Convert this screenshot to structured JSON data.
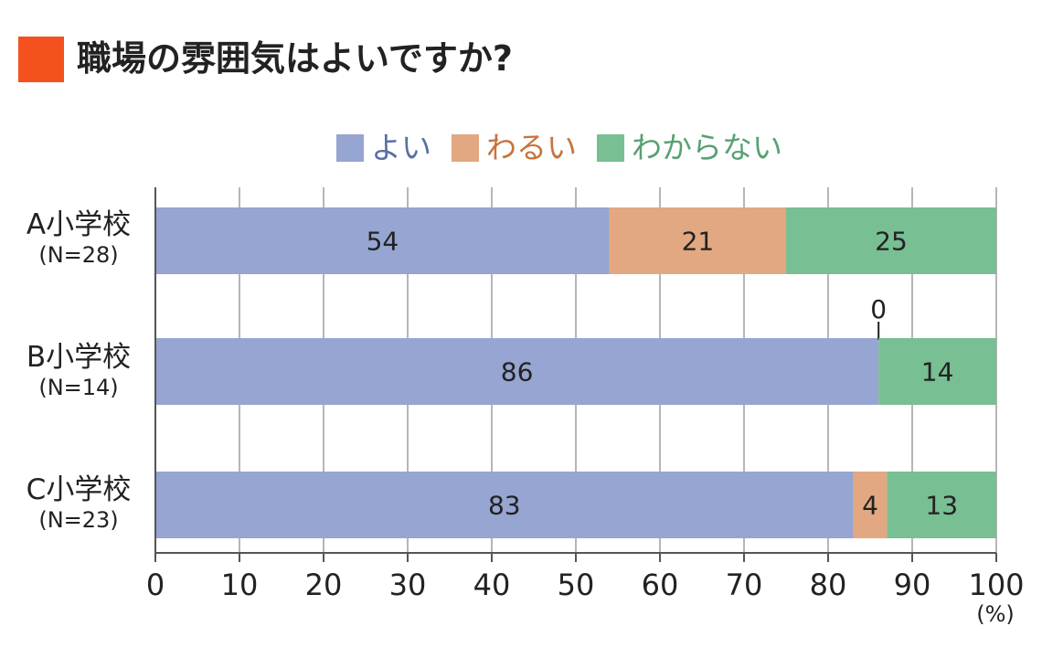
{
  "title": "職場の雰囲気はよいですか?",
  "colors": {
    "title_marker": "#F4511E",
    "grid": "#9e9e9e",
    "axis": "#555555"
  },
  "chart_data": {
    "type": "bar",
    "orientation": "horizontal",
    "stacked": true,
    "title": "職場の雰囲気はよいですか?",
    "xlabel": "",
    "ylabel": "",
    "x_unit": "(%)",
    "xlim": [
      0,
      100
    ],
    "x_ticks": [
      0,
      10,
      20,
      30,
      40,
      50,
      60,
      70,
      80,
      90,
      100
    ],
    "grid": "vertical",
    "legend_position": "top",
    "categories": [
      "A小学校",
      "B小学校",
      "C小学校"
    ],
    "category_counts": [
      "(N=28)",
      "(N=14)",
      "(N=23)"
    ],
    "series": [
      {
        "name": "よい",
        "color": "#96A5D1",
        "text_color": "#5A6FA8",
        "values": [
          54,
          86,
          83
        ]
      },
      {
        "name": "わるい",
        "color": "#E2A882",
        "text_color": "#C8733C",
        "values": [
          21,
          0,
          4
        ]
      },
      {
        "name": "わからない",
        "color": "#78BF93",
        "text_color": "#57A173",
        "values": [
          25,
          14,
          13
        ]
      }
    ]
  }
}
